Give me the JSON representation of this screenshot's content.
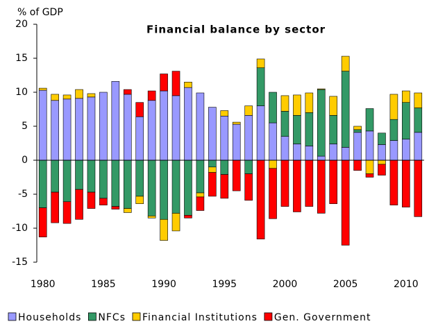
{
  "chart_data": {
    "type": "bar",
    "stacked": true,
    "title": "Financial balance by sector",
    "y_axis_label": "% of GDP",
    "categories": [
      "1980",
      null,
      null,
      null,
      null,
      "1985",
      null,
      null,
      null,
      null,
      "1990",
      null,
      null,
      null,
      null,
      "1995",
      null,
      null,
      null,
      null,
      "2000",
      null,
      null,
      null,
      null,
      "2005",
      null,
      null,
      null,
      null,
      "2010",
      null
    ],
    "series": [
      {
        "name": "Households",
        "color": "#9999ff",
        "values": [
          10.3,
          8.8,
          9.0,
          9.1,
          9.3,
          10.0,
          11.6,
          9.7,
          6.4,
          8.8,
          10.2,
          9.5,
          10.7,
          9.9,
          7.8,
          6.5,
          5.3,
          6.6,
          8.0,
          5.5,
          3.5,
          2.4,
          2.1,
          0.6,
          2.4,
          1.9,
          4.1,
          4.3,
          2.3,
          2.9,
          3.1,
          4.1
        ]
      },
      {
        "name": "NFCs",
        "color": "#339966",
        "values": [
          -7.0,
          -4.7,
          -6.1,
          -4.3,
          -4.7,
          -5.6,
          -6.8,
          -7.1,
          -5.3,
          -8.2,
          -8.7,
          -7.8,
          -8.1,
          -4.8,
          -1.0,
          -2.1,
          0,
          -2.0,
          5.6,
          4.5,
          3.7,
          4.2,
          4.9,
          9.8,
          4.2,
          11.2,
          0.4,
          3.3,
          1.7,
          3.1,
          5.4,
          3.6
        ]
      },
      {
        "name": "Financial Institutions",
        "color": "#ffcc00",
        "values": [
          0.3,
          0.9,
          0.6,
          1.3,
          0.5,
          0,
          0,
          -0.6,
          -1.1,
          -0.3,
          -3.1,
          -2.6,
          0.8,
          -0.6,
          -0.8,
          0.8,
          0.3,
          1.4,
          1.3,
          -1.2,
          2.3,
          3.0,
          2.9,
          0.1,
          2.8,
          2.2,
          0.5,
          -2.0,
          -0.6,
          3.7,
          1.7,
          2.2
        ]
      },
      {
        "name": "Gen. Government",
        "color": "#ff0000",
        "values": [
          -4.3,
          -4.5,
          -3.2,
          -4.4,
          -2.4,
          -1.0,
          -0.4,
          0.7,
          2.1,
          1.4,
          2.5,
          3.6,
          -0.4,
          -2.0,
          -3.5,
          -3.5,
          -4.5,
          -3.9,
          -11.6,
          -7.4,
          -6.8,
          -7.6,
          -6.8,
          -7.8,
          -6.4,
          -12.5,
          -1.5,
          -0.5,
          -1.6,
          -6.6,
          -6.9,
          -8.3
        ]
      }
    ],
    "ylim": [
      -15,
      20
    ],
    "yticks": [
      -15,
      -10,
      -5,
      0,
      5,
      10,
      15,
      20
    ],
    "legend": "bottom"
  }
}
